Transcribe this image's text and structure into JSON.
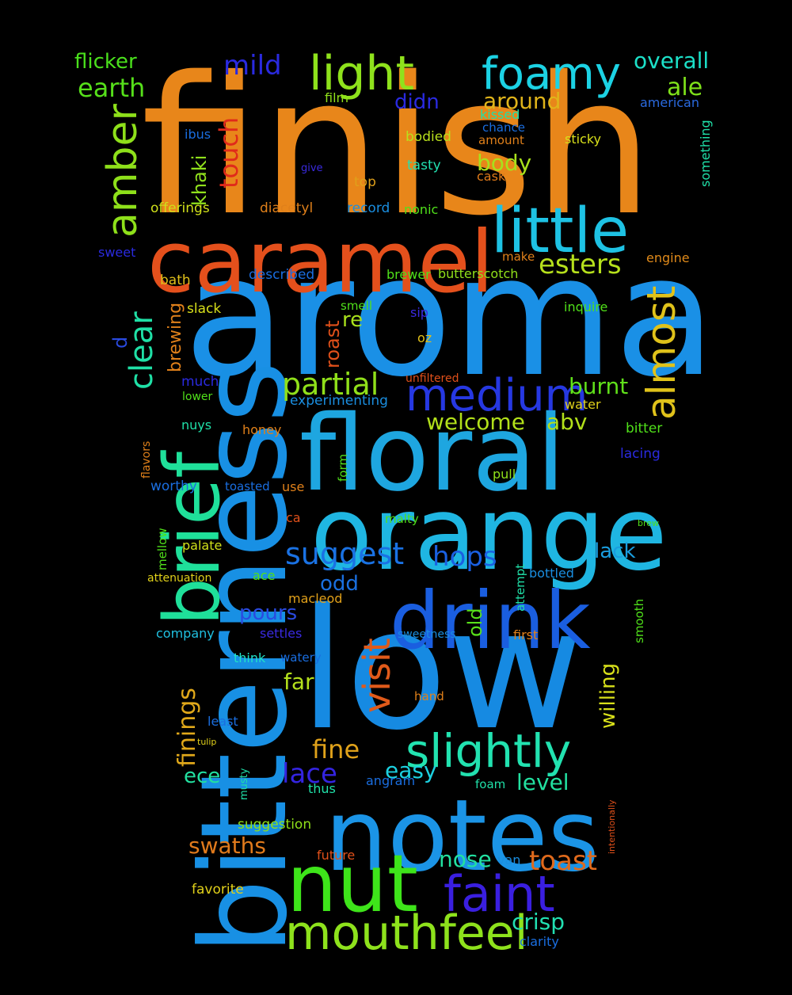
{
  "words": [
    {
      "text": "finish",
      "color": "#e8861a"
    },
    {
      "text": "aroma",
      "color": "#1a90e6"
    },
    {
      "text": "low",
      "color": "#168ae2"
    },
    {
      "text": "bitterness",
      "color": "#1890e4"
    },
    {
      "text": "floral",
      "color": "#1ea6e0"
    },
    {
      "text": "orange",
      "color": "#1fb6e2"
    },
    {
      "text": "notes",
      "color": "#1b94e6"
    },
    {
      "text": "caramel",
      "color": "#e4501c"
    },
    {
      "text": "drink",
      "color": "#1a5ee0"
    },
    {
      "text": "nut",
      "color": "#3ee41a"
    },
    {
      "text": "brief",
      "color": "#1fe09a"
    },
    {
      "text": "little",
      "color": "#1ec2e4"
    },
    {
      "text": "medium",
      "color": "#2638e2"
    },
    {
      "text": "faint",
      "color": "#3a1fe0"
    },
    {
      "text": "mouthfeel",
      "color": "#8ee21c"
    },
    {
      "text": "slightly",
      "color": "#22e2b0"
    },
    {
      "text": "foamy",
      "color": "#1cd2e4"
    },
    {
      "text": "light",
      "color": "#8fe21c"
    },
    {
      "text": "amber",
      "color": "#8ee01a"
    },
    {
      "text": "almost",
      "color": "#e0c21a"
    },
    {
      "text": "visit",
      "color": "#e05a1a"
    },
    {
      "text": "clear",
      "color": "#1fe0a6"
    },
    {
      "text": "partial",
      "color": "#90e01a"
    },
    {
      "text": "suggest",
      "color": "#1a72e4"
    },
    {
      "text": "hops",
      "color": "#1a60e2"
    },
    {
      "text": "mild",
      "color": "#2a2ae0"
    },
    {
      "text": "esters",
      "color": "#b6e01c"
    },
    {
      "text": "toast",
      "color": "#e06a1c"
    },
    {
      "text": "lace",
      "color": "#3424e0"
    },
    {
      "text": "fine",
      "color": "#e0a21a"
    },
    {
      "text": "touch",
      "color": "#e02a1a"
    },
    {
      "text": "earth",
      "color": "#56e01a"
    },
    {
      "text": "flicker",
      "color": "#4ae01c"
    },
    {
      "text": "overall",
      "color": "#1ce0c8"
    },
    {
      "text": "ale",
      "color": "#7ee01a"
    },
    {
      "text": "around",
      "color": "#e0b41a"
    },
    {
      "text": "didn",
      "color": "#2a2ae0"
    },
    {
      "text": "body",
      "color": "#a8e01c"
    },
    {
      "text": "burnt",
      "color": "#60e01a"
    },
    {
      "text": "welcome",
      "color": "#b2e01a"
    },
    {
      "text": "abv",
      "color": "#b2e01a"
    },
    {
      "text": "finings",
      "color": "#e0a81a"
    },
    {
      "text": "crisp",
      "color": "#22e0b2"
    },
    {
      "text": "swaths",
      "color": "#e07a1c"
    },
    {
      "text": "nose",
      "color": "#22e0a0"
    },
    {
      "text": "level",
      "color": "#22e0a0"
    },
    {
      "text": "easy",
      "color": "#1cd0e0"
    },
    {
      "text": "far",
      "color": "#b4e01c"
    },
    {
      "text": "pours",
      "color": "#2a4ae0"
    },
    {
      "text": "odd",
      "color": "#1a70e0"
    },
    {
      "text": "ece",
      "color": "#22e0a0"
    },
    {
      "text": "re",
      "color": "#a8e01c"
    },
    {
      "text": "roast",
      "color": "#e0501a"
    },
    {
      "text": "brewing",
      "color": "#e0801a"
    },
    {
      "text": "khaki",
      "color": "#90e01c"
    },
    {
      "text": "lack",
      "color": "#1a9ee0"
    },
    {
      "text": "willing",
      "color": "#d8e01a"
    },
    {
      "text": "old",
      "color": "#58e01a"
    },
    {
      "text": "d",
      "color": "#2a4ae0"
    },
    {
      "text": "film",
      "color": "#90e01a"
    },
    {
      "text": "kissed",
      "color": "#20e0a8"
    },
    {
      "text": "american",
      "color": "#2a6ae0"
    },
    {
      "text": "chance",
      "color": "#1a6ee0"
    },
    {
      "text": "amount",
      "color": "#e0801a"
    },
    {
      "text": "sticky",
      "color": "#d8e01a"
    },
    {
      "text": "something",
      "color": "#20e0a8"
    },
    {
      "text": "ibus",
      "color": "#1a6ee0"
    },
    {
      "text": "bodied",
      "color": "#b8e01c"
    },
    {
      "text": "tasty",
      "color": "#22e0b0"
    },
    {
      "text": "give",
      "color": "#3a2ae0"
    },
    {
      "text": "cask",
      "color": "#e07a1a"
    },
    {
      "text": "top",
      "color": "#e0a01a"
    },
    {
      "text": "offerings",
      "color": "#d0e01a"
    },
    {
      "text": "diacetyl",
      "color": "#e0801a"
    },
    {
      "text": "record",
      "color": "#1a8ee0"
    },
    {
      "text": "nonic",
      "color": "#50e01a"
    },
    {
      "text": "sweet",
      "color": "#2a2ae0"
    },
    {
      "text": "make",
      "color": "#e0801a"
    },
    {
      "text": "engine",
      "color": "#e08a1a"
    },
    {
      "text": "bath",
      "color": "#e0c01a"
    },
    {
      "text": "described",
      "color": "#1a6ee0"
    },
    {
      "text": "brewer",
      "color": "#50e01a"
    },
    {
      "text": "butterscotch",
      "color": "#90e01a"
    },
    {
      "text": "slack",
      "color": "#d8e01a"
    },
    {
      "text": "smell",
      "color": "#50e01a"
    },
    {
      "text": "inquire",
      "color": "#50e01a"
    },
    {
      "text": "sip",
      "color": "#3a2ae0"
    },
    {
      "text": "oz",
      "color": "#e0c01a"
    },
    {
      "text": "unfiltered",
      "color": "#e0501a"
    },
    {
      "text": "much",
      "color": "#2a2ae0"
    },
    {
      "text": "lower",
      "color": "#50e01a"
    },
    {
      "text": "experimenting",
      "color": "#1a8ee0"
    },
    {
      "text": "water",
      "color": "#e0d01a"
    },
    {
      "text": "nuys",
      "color": "#20e0a8"
    },
    {
      "text": "honey",
      "color": "#e0801a"
    },
    {
      "text": "bitter",
      "color": "#50e01a"
    },
    {
      "text": "flavors",
      "color": "#e0801a"
    },
    {
      "text": "form",
      "color": "#50e01a"
    },
    {
      "text": "lacing",
      "color": "#2a2ae0"
    },
    {
      "text": "worthy",
      "color": "#1a6ee0"
    },
    {
      "text": "toasted",
      "color": "#1a6ee0"
    },
    {
      "text": "use",
      "color": "#e0801a"
    },
    {
      "text": "pull",
      "color": "#90e01a"
    },
    {
      "text": "ca",
      "color": "#e0501a"
    },
    {
      "text": "malty",
      "color": "#50e01a"
    },
    {
      "text": "brew",
      "color": "#50e01a"
    },
    {
      "text": "mellow",
      "color": "#50e01a"
    },
    {
      "text": "palate",
      "color": "#d0e01a"
    },
    {
      "text": "attenuation",
      "color": "#e0d01a"
    },
    {
      "text": "ace",
      "color": "#50e01a"
    },
    {
      "text": "attempt",
      "color": "#20e0a8"
    },
    {
      "text": "bottled",
      "color": "#1a8ee0"
    },
    {
      "text": "macleod",
      "color": "#e0a01a"
    },
    {
      "text": "smooth",
      "color": "#50e01a"
    },
    {
      "text": "company",
      "color": "#20c0e0"
    },
    {
      "text": "settles",
      "color": "#3a2ae0"
    },
    {
      "text": "sweetness",
      "color": "#1a8ee0"
    },
    {
      "text": "first",
      "color": "#e0801a"
    },
    {
      "text": "think",
      "color": "#20e0c8"
    },
    {
      "text": "watery",
      "color": "#1a6ee0"
    },
    {
      "text": "hand",
      "color": "#e0801a"
    },
    {
      "text": "least",
      "color": "#1a6ee0"
    },
    {
      "text": "tulip",
      "color": "#e0d01a"
    },
    {
      "text": "musty",
      "color": "#20e0a8"
    },
    {
      "text": "thus",
      "color": "#20e0a8"
    },
    {
      "text": "angram",
      "color": "#1a6ee0"
    },
    {
      "text": "foam",
      "color": "#20e0a8"
    },
    {
      "text": "intentionally",
      "color": "#e0501a"
    },
    {
      "text": "suggestion",
      "color": "#90e01a"
    },
    {
      "text": "future",
      "color": "#e0501a"
    },
    {
      "text": "van",
      "color": "#1a8ee0"
    },
    {
      "text": "favorite",
      "color": "#e0d01a"
    },
    {
      "text": "clarity",
      "color": "#1a6ee0"
    }
  ]
}
